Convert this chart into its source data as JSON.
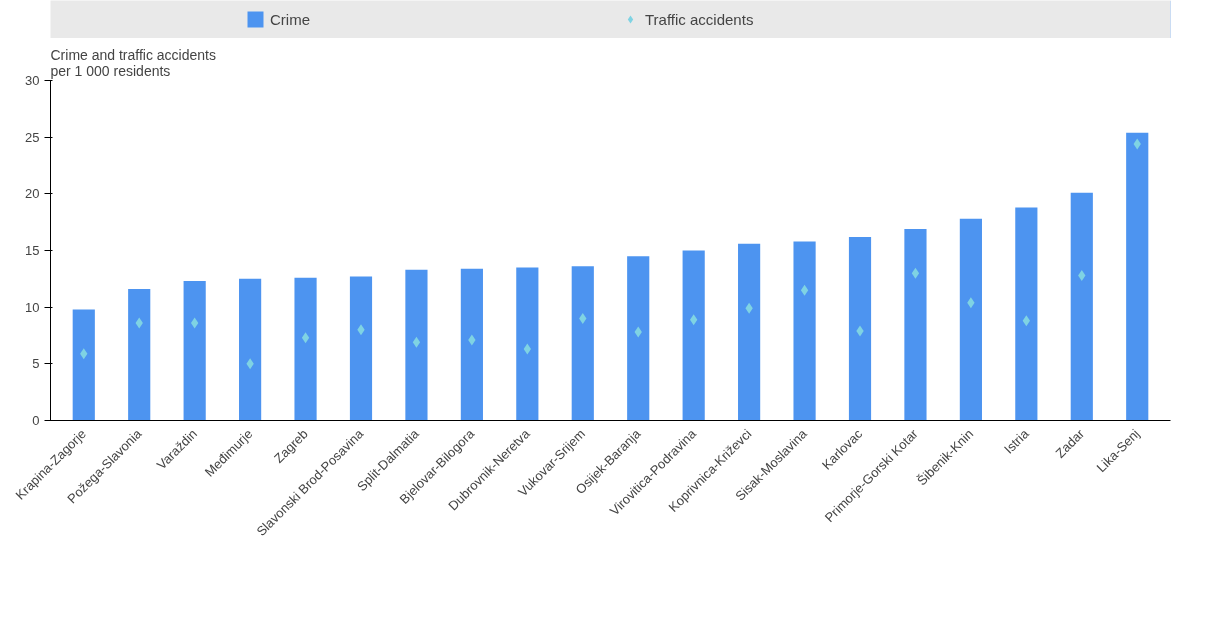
{
  "chart_data": {
    "type": "bar",
    "ylabel": "Crime and traffic accidents\nper 1 000 residents",
    "categories": [
      "Krapina-Zagorje",
      "Požega-Slavonia",
      "Varaždin",
      "Međimurje",
      "Zagreb",
      "Slavonski Brod-Posavina",
      "Split-Dalmatia",
      "Bjelovar-Bilogora",
      "Dubrovnik-Neretva",
      "Vukovar-Srijem",
      "Osijek-Baranja",
      "Virovitica-Podravina",
      "Koprivnica-Križevci",
      "Sisak-Moslavina",
      "Karlovac",
      "Primorje-Gorski Kotar",
      "Šibenik-Knin",
      "Istria",
      "Zadar",
      "Lika-Senj"
    ],
    "series": [
      {
        "name": "Crime",
        "color": "#4d94f0",
        "values": [
          9.8,
          11.6,
          12.3,
          12.5,
          12.6,
          12.7,
          13.3,
          13.4,
          13.5,
          13.6,
          14.5,
          15.0,
          15.6,
          15.8,
          16.2,
          16.9,
          17.8,
          18.8,
          20.1,
          25.4
        ]
      },
      {
        "name": "Traffic accidents",
        "type": "scatter",
        "marker": "diamond",
        "color": "#7fd3e3",
        "values": [
          5.9,
          8.6,
          8.6,
          5.0,
          7.3,
          8.0,
          6.9,
          7.1,
          6.3,
          9.0,
          7.8,
          8.9,
          9.9,
          11.5,
          7.9,
          13.0,
          10.4,
          8.8,
          12.8,
          24.4
        ]
      }
    ],
    "ylim": [
      0,
      30
    ],
    "yticks": [
      0,
      5,
      10,
      15,
      20,
      25,
      30
    ],
    "grid": false,
    "legend": "top"
  }
}
